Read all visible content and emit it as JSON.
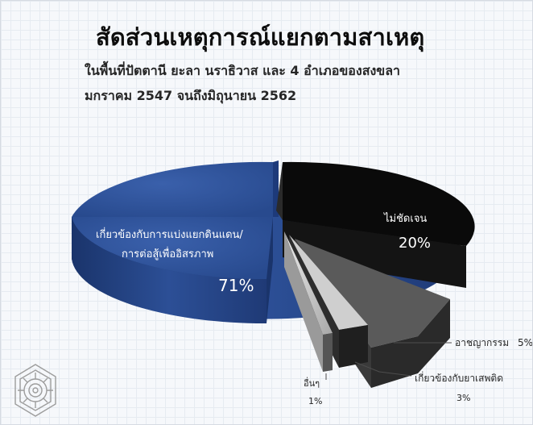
{
  "title": "สัดส่วนเหตุการณ์แยกตามสาเหตุ",
  "subtitle_line1": "ในพื้นที่ปัตตานี ยะลา นราธิวาส และ 4 อำเภอของสงขลา",
  "subtitle_line2": "มกราคม 2547 จนถึงมิถุนายน 2562",
  "colors": {
    "separatism": "#2c4f96",
    "unclear": "#0a0a0a",
    "crime": "#3a3a3a",
    "drugs": "#1f1f1f",
    "other": "#b5b5b5",
    "other2": "#d8d8d8"
  },
  "chart_data": {
    "type": "pie",
    "style": "3d-exploded",
    "title": "สัดส่วนเหตุการณ์แยกตามสาเหตุ",
    "slices": [
      {
        "key": "separatism",
        "label_line1": "เกี่ยวข้องกับการแบ่งแยกดินแดน/",
        "label_line2": "การต่อสู้เพื่ออิสรภาพ",
        "value": 71,
        "value_label": "71%"
      },
      {
        "key": "unclear",
        "label_line1": "ไม่ชัดเจน",
        "label_line2": "",
        "value": 20,
        "value_label": "20%"
      },
      {
        "key": "crime",
        "label_line1": "อาชญากรรม",
        "label_line2": "",
        "value": 5,
        "value_label": "5%"
      },
      {
        "key": "drugs",
        "label_line1": "เกี่ยวข้องกับยาเสพติด",
        "label_line2": "",
        "value": 3,
        "value_label": "3%"
      },
      {
        "key": "other",
        "label_line1": "อื่นๆ",
        "label_line2": "",
        "value": 1,
        "value_label": "1%"
      }
    ]
  }
}
